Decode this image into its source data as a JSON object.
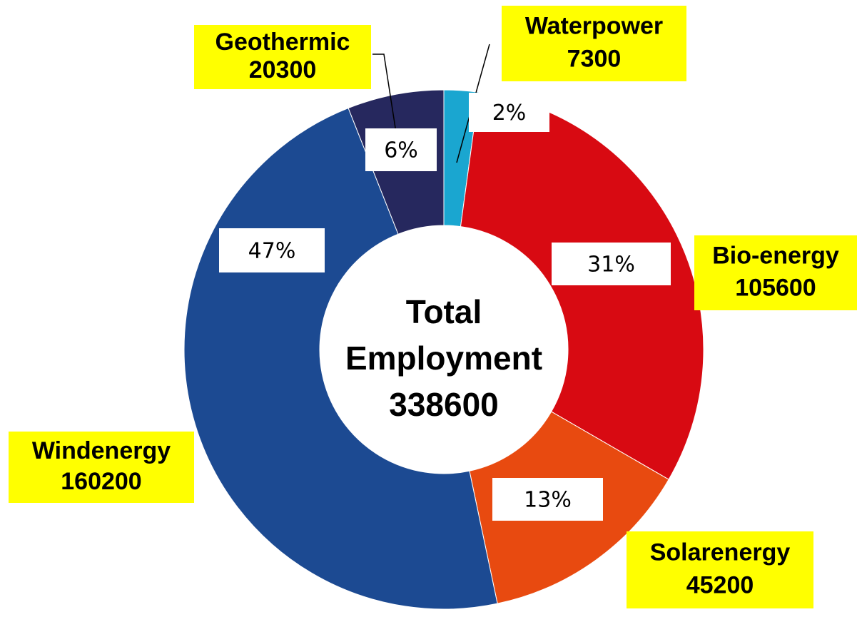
{
  "chart_data": {
    "type": "pie",
    "donut": true,
    "categories": [
      "Waterpower",
      "Bio-energy",
      "Solarenergy",
      "Windenergy",
      "Geothermic"
    ],
    "values": [
      7300,
      105600,
      45200,
      160200,
      20300
    ],
    "colors": [
      "#1aa6d0",
      "#d80a12",
      "#e84a10",
      "#1c4a92",
      "#26285e"
    ],
    "shares": {
      "values": [
        2,
        31,
        13,
        47,
        6
      ],
      "value_labels": [
        "2%",
        "31%",
        "13%",
        "47%",
        "6%"
      ]
    },
    "center_label": [
      "Total",
      "Employment"
    ],
    "total": 338600
  }
}
